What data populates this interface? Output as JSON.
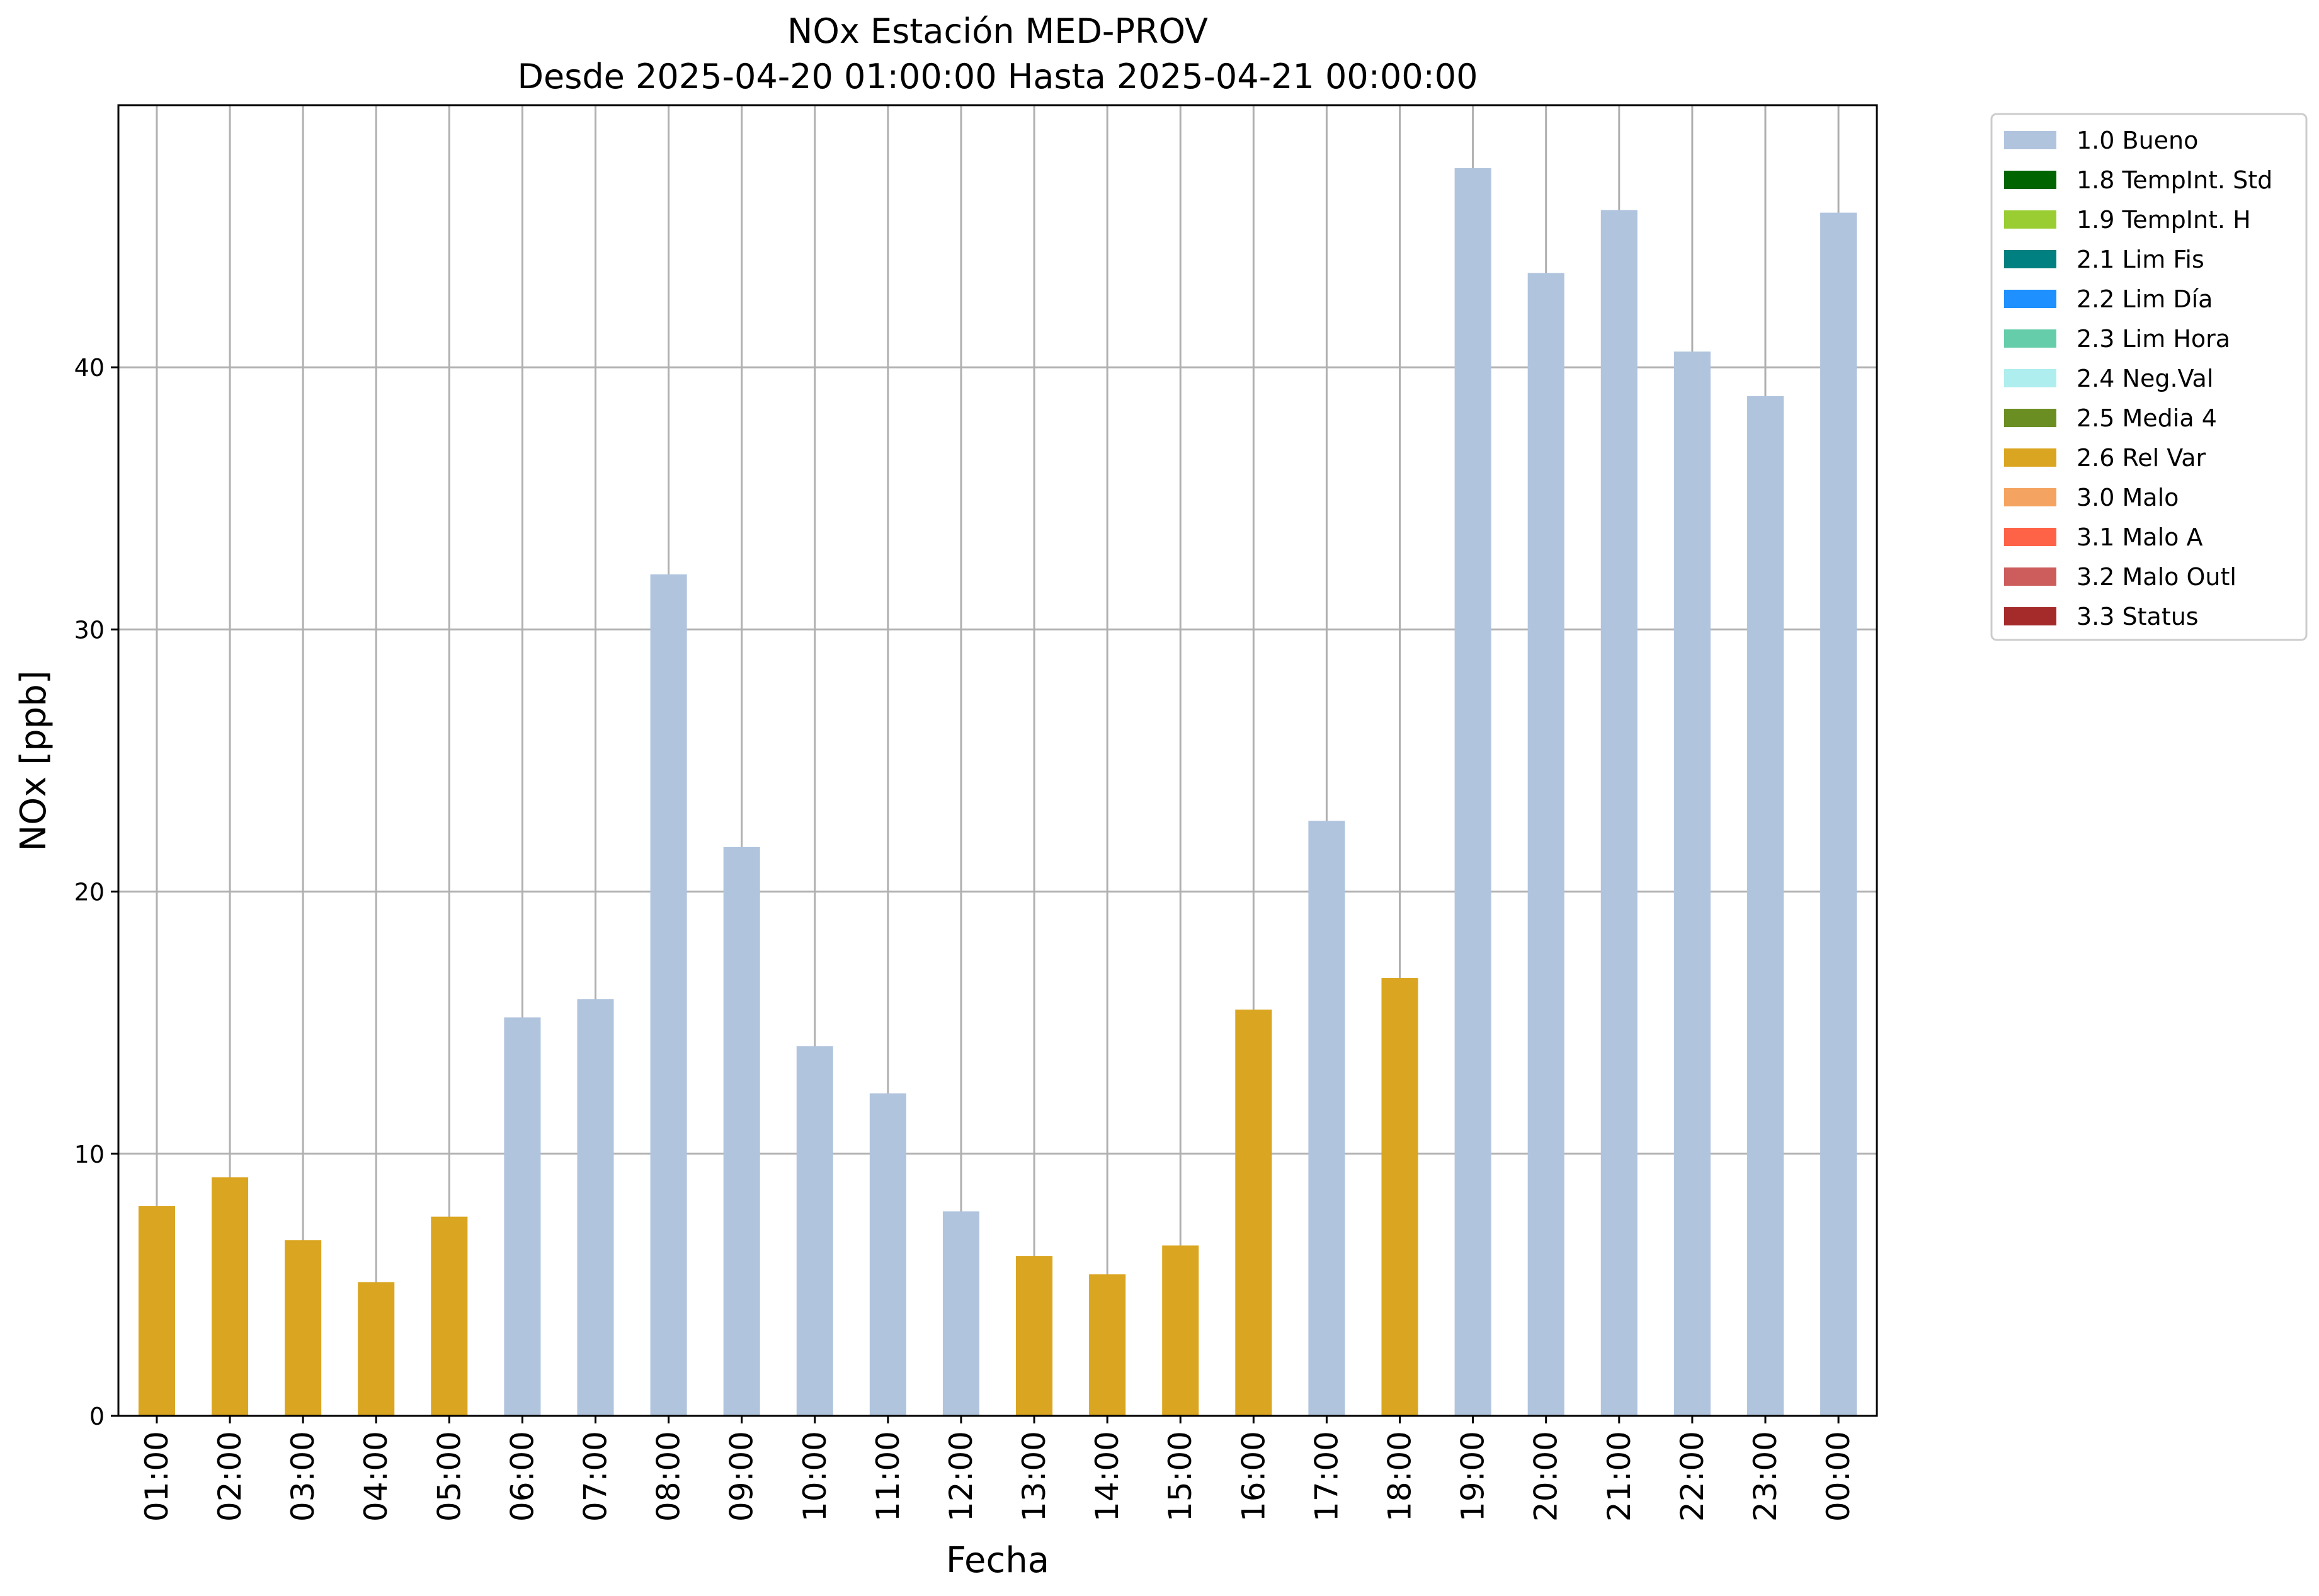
{
  "chart_data": {
    "type": "bar",
    "title": "NOx Estación MED-PROV",
    "subtitle": "Desde 2025-04-20 01:00:00 Hasta 2025-04-21 00:00:00",
    "xlabel": "Fecha",
    "ylabel": "NOx [ppb]",
    "ylim": [
      0,
      50
    ],
    "yticks": [
      0,
      10,
      20,
      30,
      40
    ],
    "grid": true,
    "legend_position": "outside-top-right",
    "categories": [
      "01:00",
      "02:00",
      "03:00",
      "04:00",
      "05:00",
      "06:00",
      "07:00",
      "08:00",
      "09:00",
      "10:00",
      "11:00",
      "12:00",
      "13:00",
      "14:00",
      "15:00",
      "16:00",
      "17:00",
      "18:00",
      "19:00",
      "20:00",
      "21:00",
      "22:00",
      "23:00",
      "00:00"
    ],
    "values": [
      8.0,
      9.1,
      6.7,
      5.1,
      7.6,
      15.2,
      15.9,
      32.1,
      21.7,
      14.1,
      12.3,
      7.8,
      6.1,
      5.4,
      6.5,
      15.5,
      22.7,
      16.7,
      47.6,
      43.6,
      46.0,
      40.6,
      38.9,
      45.9
    ],
    "flags": [
      "2.6",
      "2.6",
      "2.6",
      "2.6",
      "2.6",
      "1.0",
      "1.0",
      "1.0",
      "1.0",
      "1.0",
      "1.0",
      "1.0",
      "2.6",
      "2.6",
      "2.6",
      "2.6",
      "1.0",
      "2.6",
      "1.0",
      "1.0",
      "1.0",
      "1.0",
      "1.0",
      "1.0"
    ],
    "legend": [
      {
        "code": "1.0",
        "label": "1.0 Bueno",
        "color": "#b0c4de"
      },
      {
        "code": "1.8",
        "label": "1.8 TempInt. Std",
        "color": "#006400"
      },
      {
        "code": "1.9",
        "label": "1.9 TempInt. H",
        "color": "#9acd32"
      },
      {
        "code": "2.1",
        "label": "2.1 Lim Fis",
        "color": "#008080"
      },
      {
        "code": "2.2",
        "label": "2.2 Lim Día",
        "color": "#1e90ff"
      },
      {
        "code": "2.3",
        "label": "2.3 Lim Hora",
        "color": "#66cdaa"
      },
      {
        "code": "2.4",
        "label": "2.4 Neg.Val",
        "color": "#afeeee"
      },
      {
        "code": "2.5",
        "label": "2.5 Media 4",
        "color": "#6b8e23"
      },
      {
        "code": "2.6",
        "label": "2.6 Rel Var",
        "color": "#daa520"
      },
      {
        "code": "3.0",
        "label": "3.0 Malo",
        "color": "#f4a460"
      },
      {
        "code": "3.1",
        "label": "3.1 Malo A",
        "color": "#ff6347"
      },
      {
        "code": "3.2",
        "label": "3.2 Malo Outl",
        "color": "#cd5c5c"
      },
      {
        "code": "3.3",
        "label": "3.3 Status",
        "color": "#a52a2a"
      }
    ]
  }
}
